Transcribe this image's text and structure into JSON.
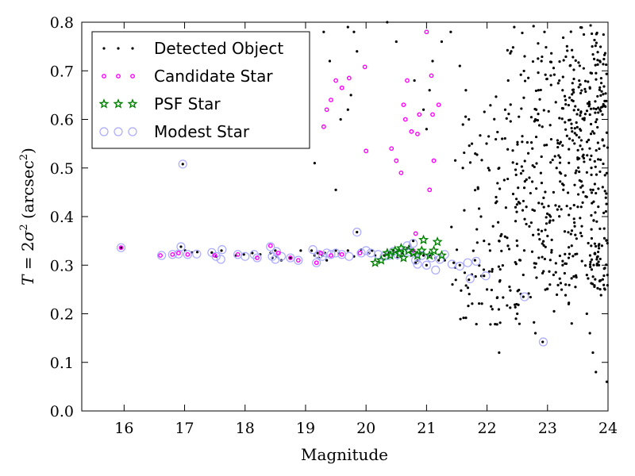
{
  "chart_data": {
    "type": "scatter",
    "title": "",
    "xlabel": "Magnitude",
    "ylabel_parts": {
      "var": "T",
      "eq": " = 2",
      "sigma": "σ",
      "sup": "2",
      "unit_open": " (arcsec",
      "unit_sup": "2",
      "unit_close": ")"
    },
    "xlim": [
      15.3,
      24
    ],
    "ylim": [
      0,
      0.8
    ],
    "xticks": [
      "16",
      "17",
      "18",
      "19",
      "20",
      "21",
      "22",
      "23",
      "24"
    ],
    "yticks": [
      "0.0",
      "0.1",
      "0.2",
      "0.3",
      "0.4",
      "0.5",
      "0.6",
      "0.7",
      "0.8"
    ],
    "legend_position": "top-left",
    "grid": false,
    "colors": {
      "detected": "#000000",
      "candidate": "#ff00ff",
      "psf": "#008000",
      "modest": "#aaaaff"
    },
    "series": [
      {
        "name": "Detected Object",
        "marker": "dot",
        "points": [
          [
            15.95,
            0.336
          ],
          [
            16.97,
            0.508
          ],
          [
            16.94,
            0.338
          ],
          [
            17.01,
            0.33
          ],
          [
            17.12,
            0.326
          ],
          [
            17.21,
            0.327
          ],
          [
            17.45,
            0.326
          ],
          [
            17.52,
            0.318
          ],
          [
            17.61,
            0.33
          ],
          [
            17.85,
            0.32
          ],
          [
            17.98,
            0.322
          ],
          [
            18.12,
            0.325
          ],
          [
            18.25,
            0.322
          ],
          [
            18.42,
            0.325
          ],
          [
            18.45,
            0.315
          ],
          [
            18.5,
            0.33
          ],
          [
            18.52,
            0.318
          ],
          [
            18.6,
            0.31
          ],
          [
            18.75,
            0.315
          ],
          [
            18.92,
            0.33
          ],
          [
            19.1,
            0.33
          ],
          [
            19.15,
            0.32
          ],
          [
            19.2,
            0.325
          ],
          [
            19.22,
            0.315
          ],
          [
            19.28,
            0.32
          ],
          [
            19.32,
            0.325
          ],
          [
            19.5,
            0.33
          ],
          [
            19.55,
            0.325
          ],
          [
            19.7,
            0.33
          ],
          [
            19.8,
            0.318
          ],
          [
            19.85,
            0.368
          ],
          [
            19.92,
            0.332
          ],
          [
            20.05,
            0.325
          ],
          [
            20.1,
            0.33
          ],
          [
            20.15,
            0.32
          ],
          [
            20.3,
            0.32
          ],
          [
            20.38,
            0.325
          ],
          [
            20.45,
            0.33
          ],
          [
            20.52,
            0.315
          ],
          [
            20.6,
            0.325
          ],
          [
            20.68,
            0.335
          ],
          [
            20.72,
            0.34
          ],
          [
            20.75,
            0.32
          ],
          [
            20.78,
            0.35
          ],
          [
            20.82,
            0.305
          ],
          [
            20.85,
            0.31
          ],
          [
            20.9,
            0.325
          ],
          [
            20.95,
            0.32
          ],
          [
            21.0,
            0.3
          ],
          [
            21.05,
            0.32
          ],
          [
            21.15,
            0.315
          ],
          [
            21.2,
            0.31
          ],
          [
            21.3,
            0.31
          ],
          [
            21.45,
            0.305
          ],
          [
            21.55,
            0.3
          ],
          [
            21.7,
            0.27
          ],
          [
            21.8,
            0.31
          ],
          [
            21.95,
            0.278
          ],
          [
            22.6,
            0.235
          ],
          [
            22.92,
            0.142
          ],
          [
            19.35,
            0.31
          ],
          [
            19.75,
            0.65
          ],
          [
            19.7,
            0.62
          ],
          [
            19.58,
            0.6
          ],
          [
            19.8,
            0.78
          ],
          [
            19.85,
            0.74
          ],
          [
            19.7,
            0.79
          ],
          [
            19.4,
            0.72
          ],
          [
            19.3,
            0.78
          ],
          [
            19.15,
            0.51
          ],
          [
            19.5,
            0.455
          ],
          [
            20.35,
            0.8
          ],
          [
            20.5,
            0.76
          ],
          [
            20.8,
            0.68
          ],
          [
            20.95,
            0.62
          ],
          [
            21.0,
            0.58
          ],
          [
            21.05,
            0.66
          ],
          [
            21.1,
            0.72
          ],
          [
            21.25,
            0.76
          ],
          [
            21.4,
            0.78
          ],
          [
            21.55,
            0.71
          ],
          [
            21.65,
            0.66
          ],
          [
            21.7,
            0.6
          ],
          [
            21.75,
            0.55
          ],
          [
            21.6,
            0.5
          ],
          [
            21.85,
            0.46
          ],
          [
            21.9,
            0.4
          ],
          [
            21.95,
            0.35
          ],
          [
            22.05,
            0.33
          ],
          [
            22.1,
            0.38
          ],
          [
            22.15,
            0.44
          ],
          [
            22.2,
            0.5
          ],
          [
            22.25,
            0.56
          ],
          [
            22.3,
            0.62
          ],
          [
            22.35,
            0.68
          ],
          [
            22.4,
            0.74
          ],
          [
            22.45,
            0.79
          ],
          [
            22.5,
            0.34
          ],
          [
            22.55,
            0.31
          ],
          [
            22.6,
            0.28
          ],
          [
            22.65,
            0.42
          ],
          [
            22.7,
            0.48
          ],
          [
            22.75,
            0.54
          ],
          [
            22.8,
            0.6
          ],
          [
            22.85,
            0.66
          ],
          [
            22.9,
            0.72
          ],
          [
            22.95,
            0.78
          ],
          [
            23.0,
            0.36
          ],
          [
            23.05,
            0.4
          ],
          [
            23.1,
            0.45
          ],
          [
            23.15,
            0.5
          ],
          [
            23.2,
            0.55
          ],
          [
            23.25,
            0.3
          ],
          [
            23.3,
            0.26
          ],
          [
            23.35,
            0.22
          ],
          [
            23.4,
            0.34
          ],
          [
            23.45,
            0.38
          ],
          [
            23.5,
            0.42
          ],
          [
            23.55,
            0.46
          ],
          [
            23.6,
            0.52
          ],
          [
            23.65,
            0.2
          ],
          [
            23.7,
            0.16
          ],
          [
            23.75,
            0.12
          ],
          [
            23.8,
            0.08
          ],
          [
            23.85,
            0.3
          ],
          [
            23.9,
            0.34
          ],
          [
            23.95,
            0.25
          ],
          [
            23.98,
            0.06
          ],
          [
            22.2,
            0.12
          ],
          [
            22.5,
            0.2
          ],
          [
            22.8,
            0.16
          ],
          [
            23.1,
            0.28
          ],
          [
            23.4,
            0.18
          ],
          [
            22.0,
            0.25
          ]
        ],
        "cloud": {
          "xrange": [
            21.4,
            24.0
          ],
          "yrange": [
            0.05,
            0.8
          ],
          "count": 600,
          "seed": 7
        }
      },
      {
        "name": "Candidate Star",
        "marker": "small-circle",
        "points": [
          [
            15.95,
            0.336
          ],
          [
            16.6,
            0.32
          ],
          [
            16.8,
            0.322
          ],
          [
            16.9,
            0.325
          ],
          [
            17.05,
            0.322
          ],
          [
            17.5,
            0.32
          ],
          [
            17.88,
            0.322
          ],
          [
            18.2,
            0.315
          ],
          [
            18.42,
            0.34
          ],
          [
            18.55,
            0.325
          ],
          [
            18.75,
            0.315
          ],
          [
            18.88,
            0.31
          ],
          [
            19.18,
            0.305
          ],
          [
            19.25,
            0.325
          ],
          [
            19.42,
            0.32
          ],
          [
            19.6,
            0.322
          ],
          [
            19.9,
            0.325
          ],
          [
            19.3,
            0.585
          ],
          [
            19.35,
            0.62
          ],
          [
            19.42,
            0.64
          ],
          [
            19.5,
            0.68
          ],
          [
            19.6,
            0.665
          ],
          [
            19.72,
            0.685
          ],
          [
            19.98,
            0.708
          ],
          [
            20.0,
            0.535
          ],
          [
            20.42,
            0.54
          ],
          [
            20.5,
            0.515
          ],
          [
            20.58,
            0.49
          ],
          [
            20.62,
            0.63
          ],
          [
            20.65,
            0.6
          ],
          [
            20.68,
            0.68
          ],
          [
            20.75,
            0.575
          ],
          [
            20.82,
            0.365
          ],
          [
            20.85,
            0.57
          ],
          [
            20.88,
            0.61
          ],
          [
            21.0,
            0.78
          ],
          [
            21.05,
            0.455
          ],
          [
            21.08,
            0.69
          ],
          [
            21.12,
            0.515
          ],
          [
            21.2,
            0.63
          ],
          [
            21.1,
            0.61
          ],
          [
            20.78,
            0.33
          ]
        ]
      },
      {
        "name": "PSF Star",
        "marker": "star",
        "points": [
          [
            20.15,
            0.305
          ],
          [
            20.25,
            0.31
          ],
          [
            20.4,
            0.32
          ],
          [
            20.48,
            0.33
          ],
          [
            20.55,
            0.325
          ],
          [
            20.62,
            0.315
          ],
          [
            20.7,
            0.33
          ],
          [
            20.78,
            0.325
          ],
          [
            20.85,
            0.32
          ],
          [
            20.92,
            0.33
          ],
          [
            20.95,
            0.352
          ],
          [
            21.05,
            0.32
          ],
          [
            21.12,
            0.33
          ],
          [
            21.18,
            0.348
          ],
          [
            21.25,
            0.32
          ],
          [
            20.58,
            0.335
          ],
          [
            20.35,
            0.325
          ]
        ]
      },
      {
        "name": "Modest Star",
        "marker": "open-circle",
        "points": [
          [
            15.95,
            0.336
          ],
          [
            16.97,
            0.508
          ],
          [
            16.94,
            0.338
          ],
          [
            16.62,
            0.32
          ],
          [
            16.8,
            0.322
          ],
          [
            16.9,
            0.323
          ],
          [
            17.05,
            0.322
          ],
          [
            17.2,
            0.323
          ],
          [
            17.45,
            0.326
          ],
          [
            17.52,
            0.318
          ],
          [
            17.6,
            0.312
          ],
          [
            17.62,
            0.332
          ],
          [
            17.88,
            0.322
          ],
          [
            18.0,
            0.318
          ],
          [
            18.15,
            0.322
          ],
          [
            18.2,
            0.315
          ],
          [
            18.42,
            0.338
          ],
          [
            18.45,
            0.318
          ],
          [
            18.5,
            0.312
          ],
          [
            18.52,
            0.328
          ],
          [
            18.6,
            0.318
          ],
          [
            18.75,
            0.315
          ],
          [
            18.88,
            0.31
          ],
          [
            19.12,
            0.332
          ],
          [
            19.18,
            0.305
          ],
          [
            19.22,
            0.322
          ],
          [
            19.28,
            0.318
          ],
          [
            19.35,
            0.325
          ],
          [
            19.42,
            0.322
          ],
          [
            19.5,
            0.325
          ],
          [
            19.6,
            0.322
          ],
          [
            19.72,
            0.318
          ],
          [
            19.85,
            0.368
          ],
          [
            19.92,
            0.325
          ],
          [
            20.0,
            0.33
          ],
          [
            20.08,
            0.325
          ],
          [
            20.2,
            0.322
          ],
          [
            20.3,
            0.318
          ],
          [
            20.38,
            0.32
          ],
          [
            20.45,
            0.328
          ],
          [
            20.52,
            0.322
          ],
          [
            20.6,
            0.325
          ],
          [
            20.68,
            0.34
          ],
          [
            20.72,
            0.328
          ],
          [
            20.78,
            0.345
          ],
          [
            20.82,
            0.31
          ],
          [
            20.85,
            0.302
          ],
          [
            20.92,
            0.32
          ],
          [
            21.0,
            0.3
          ],
          [
            21.08,
            0.315
          ],
          [
            21.15,
            0.29
          ],
          [
            21.22,
            0.312
          ],
          [
            21.3,
            0.322
          ],
          [
            21.42,
            0.302
          ],
          [
            21.55,
            0.298
          ],
          [
            21.68,
            0.305
          ],
          [
            21.72,
            0.272
          ],
          [
            21.82,
            0.308
          ],
          [
            21.98,
            0.278
          ],
          [
            22.62,
            0.235
          ],
          [
            22.93,
            0.142
          ]
        ]
      }
    ]
  }
}
